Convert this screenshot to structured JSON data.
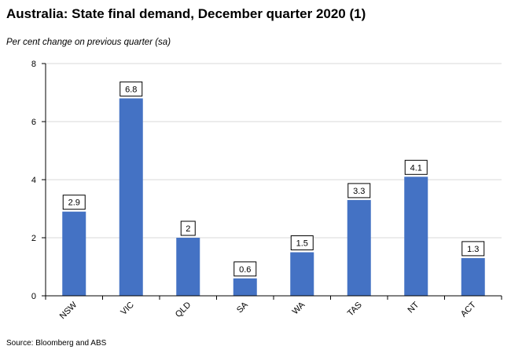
{
  "chart_data": {
    "type": "bar",
    "title": "Australia: State final demand, December quarter 2020 (1)",
    "subtitle": "Per cent change on previous quarter (sa)",
    "source": "Source: Bloomberg and ABS",
    "categories": [
      "NSW",
      "VIC",
      "QLD",
      "SA",
      "WA",
      "TAS",
      "NT",
      "ACT"
    ],
    "values": [
      2.9,
      6.8,
      2,
      0.6,
      1.5,
      3.3,
      4.1,
      1.3
    ],
    "data_labels": [
      "2.9",
      "6.8",
      "2",
      "0.6",
      "1.5",
      "3.3",
      "4.1",
      "1.3"
    ],
    "ylim": [
      0,
      8
    ],
    "yticks": [
      0,
      2,
      4,
      6,
      8
    ],
    "grid": true,
    "bar_color": "#4472C4",
    "grid_color": "#d9d9d9"
  }
}
